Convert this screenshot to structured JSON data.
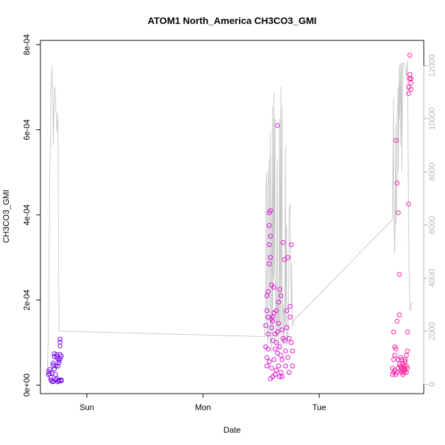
{
  "chart_data": {
    "type": "scatter",
    "title": "ATOM1 North_America CH3CO3_GMI",
    "xlabel": "Date",
    "ylabel": "CH3CO3_GMI",
    "x_ticks": [
      "Sun",
      "Mon",
      "Tue"
    ],
    "x_tick_values_days": [
      0,
      1,
      2
    ],
    "xlim_days": [
      -0.4,
      2.9
    ],
    "y_ticks": [
      "0e+00",
      "2e-04",
      "4e-04",
      "6e-04",
      "8e-04"
    ],
    "y_tick_values": [
      0,
      0.0002,
      0.0004,
      0.0006,
      0.0008
    ],
    "ylim": [
      -2e-05,
      0.00081
    ],
    "y2_ticks": [
      "0",
      "2000",
      "4000",
      "6000",
      "8000",
      "10000",
      "12000"
    ],
    "y2_tick_values": [
      0,
      2000,
      4000,
      6000,
      8000,
      10000,
      12000
    ],
    "y2lim": [
      -350,
      12950
    ],
    "point_color_start": "#6a00ee",
    "point_color_mid": "#d100e6",
    "point_color_end": "#ff1493",
    "altitude_line_color": "#c8c8c8",
    "right_axis_color": "#b8b8b8",
    "series": [
      {
        "style": "points",
        "x": [
          -0.33,
          -0.33,
          -0.32,
          -0.32,
          -0.31,
          -0.31,
          -0.3,
          -0.3,
          -0.29,
          -0.29,
          -0.29,
          -0.28,
          -0.28,
          -0.28,
          -0.27,
          -0.27,
          -0.27,
          -0.26,
          -0.26,
          -0.26,
          -0.25,
          -0.25,
          -0.25,
          -0.24,
          -0.24,
          -0.24,
          -0.24,
          -0.23,
          -0.23,
          -0.23,
          -0.23,
          -0.23,
          -0.22,
          -0.22,
          -0.22,
          -0.22
        ],
        "y": [
          2.5e-05,
          3.2e-05,
          3.7e-05,
          2.7e-05,
          1.8e-05,
          1.2e-05,
          9e-06,
          2.8e-05,
          4.7e-05,
          5.2e-05,
          8e-06,
          6.7e-05,
          7.4e-05,
          3.8e-05,
          4.5e-05,
          1.2e-05,
          2.5e-05,
          7.2e-05,
          6.7e-05,
          1.5e-05,
          8e-06,
          4.5e-05,
          6.2e-05,
          5.2e-05,
          1e-05,
          1.2e-05,
          5.8e-05,
          6.2e-05,
          7.2e-05,
          9.2e-05,
          0.000101,
          0.000108,
          6.8e-05,
          1.2e-05,
          1e-05,
          1.2e-05
        ]
      },
      {
        "style": "points",
        "x": [
          1.54,
          1.54,
          1.55,
          1.55,
          1.55,
          1.55,
          1.56,
          1.56,
          1.56,
          1.56,
          1.57,
          1.57,
          1.57,
          1.57,
          1.57,
          1.58,
          1.58,
          1.58,
          1.58,
          1.59,
          1.59,
          1.59,
          1.59,
          1.6,
          1.6,
          1.6,
          1.6,
          1.61,
          1.61,
          1.61,
          1.62,
          1.62,
          1.62,
          1.63,
          1.63,
          1.63,
          1.64,
          1.64,
          1.64,
          1.65,
          1.65,
          1.65,
          1.66,
          1.66,
          1.66,
          1.67,
          1.67,
          1.67,
          1.68,
          1.68,
          1.68,
          1.69,
          1.69,
          1.7,
          1.7,
          1.71,
          1.71,
          1.72,
          1.72,
          1.73,
          1.73,
          1.74,
          1.74,
          1.75,
          1.75,
          1.76,
          1.76,
          1.77,
          1.77
        ],
        "y": [
          9e-05,
          0.00014,
          0.00021,
          6.5e-05,
          0.000175,
          4.5e-05,
          0.00022,
          8.5e-05,
          0.00016,
          0.00012,
          0.000285,
          0.000375,
          0.000405,
          0.00033,
          5.5e-05,
          0.00041,
          0.00035,
          0.0003,
          1.5e-05,
          0.000235,
          0.000155,
          0.000135,
          4e-05,
          0.00016,
          0.000105,
          0.00015,
          2e-05,
          0.00023,
          0.00017,
          6e-05,
          0.00012,
          8.5e-05,
          2.5e-05,
          0.0001,
          3.5e-05,
          0.000175,
          0.00061,
          0.000125,
          7.5e-05,
          0.000145,
          4.5e-05,
          0.000195,
          0.000225,
          2e-05,
          9e-05,
          0.00021,
          7e-05,
          3e-05,
          0.00013,
          6e-05,
          2e-05,
          0.00011,
          0.000335,
          0.000295,
          0.000105,
          8e-05,
          4.5e-05,
          0.000175,
          0.000135,
          0.0003,
          6.5e-05,
          0.00011,
          3e-05,
          0.000185,
          0.00016,
          0.0001,
          0.00033,
          4.5e-05,
          8e-05
        ]
      },
      {
        "style": "points",
        "x": [
          2.63,
          2.63,
          2.64,
          2.64,
          2.64,
          2.65,
          2.65,
          2.65,
          2.66,
          2.66,
          2.66,
          2.67,
          2.67,
          2.67,
          2.68,
          2.68,
          2.68,
          2.69,
          2.69,
          2.69,
          2.7,
          2.7,
          2.7,
          2.71,
          2.71,
          2.71,
          2.72,
          2.72,
          2.72,
          2.73,
          2.73,
          2.73,
          2.74,
          2.74,
          2.74,
          2.75,
          2.75,
          2.75,
          2.76,
          2.76,
          2.76,
          2.77,
          2.77,
          2.77,
          2.78,
          2.78,
          2.78,
          2.79,
          2.79,
          2.79
        ],
        "y": [
          2.5e-05,
          4e-05,
          6e-05,
          0.000125,
          3e-05,
          9e-05,
          3.5e-05,
          7e-05,
          0.000575,
          8.5e-05,
          2.5e-05,
          0.000475,
          0.00015,
          3e-05,
          0.000405,
          6e-05,
          4e-05,
          0.000165,
          0.00026,
          5e-05,
          6.5e-05,
          3.5e-05,
          4.5e-05,
          4e-05,
          6e-05,
          3e-05,
          3.5e-05,
          5e-05,
          2.5e-05,
          4.5e-05,
          3e-05,
          4e-05,
          5.5e-05,
          3.5e-05,
          6e-05,
          3e-05,
          7e-05,
          4.5e-05,
          8e-05,
          0.000125,
          4e-05,
          0.000425,
          0.0007,
          0.000685,
          0.000775,
          0.00072,
          0.00073,
          0.00071,
          0.00072,
          0.000695
        ]
      },
      {
        "style": "line",
        "axis": "right",
        "x": [
          -0.34,
          -0.33,
          -0.32,
          -0.31,
          -0.31,
          -0.3,
          -0.3,
          -0.29,
          -0.29,
          -0.28,
          -0.28,
          -0.27,
          -0.27,
          -0.26,
          -0.26,
          -0.25,
          -0.25,
          -0.24,
          -0.24,
          -0.23,
          -0.23,
          -0.23,
          -0.22,
          -0.22,
          1.53,
          1.54,
          1.54,
          1.55,
          1.55,
          1.56,
          1.56,
          1.57,
          1.57,
          1.58,
          1.58,
          1.59,
          1.59,
          1.6,
          1.6,
          1.61,
          1.61,
          1.62,
          1.62,
          1.63,
          1.63,
          1.64,
          1.64,
          1.65,
          1.65,
          1.66,
          1.66,
          1.67,
          1.67,
          1.68,
          1.68,
          1.69,
          1.69,
          1.7,
          1.7,
          1.71,
          1.71,
          1.72,
          1.72,
          1.73,
          1.73,
          1.74,
          1.74,
          1.75,
          1.75,
          1.76,
          1.76,
          1.77,
          1.78,
          2.63,
          2.64,
          2.64,
          2.65,
          2.65,
          2.66,
          2.66,
          2.67,
          2.67,
          2.68,
          2.68,
          2.69,
          2.69,
          2.7,
          2.7,
          2.71,
          2.71,
          2.72,
          2.73,
          2.74,
          2.75,
          2.76,
          2.77,
          2.78,
          2.79,
          2.79,
          2.8
        ],
        "y": [
          500,
          2000,
          8000,
          10000,
          11000,
          12000,
          11500,
          10000,
          9000,
          11000,
          11200,
          11000,
          10500,
          10000,
          9500,
          10000,
          10200,
          2000,
          2000,
          2000,
          2000,
          2000,
          2000,
          2000,
          1800,
          3000,
          7200,
          8000,
          2500,
          1500,
          7000,
          8500,
          4500,
          1500,
          9500,
          3500,
          1200,
          10500,
          1800,
          11000,
          4000,
          10000,
          4500,
          1500,
          2000,
          8500,
          1800,
          3500,
          1200,
          10000,
          2000,
          11200,
          1500,
          10500,
          3500,
          1500,
          3000,
          2500,
          1500,
          9000,
          2200,
          6000,
          1500,
          2000,
          1500,
          5000,
          6500,
          6800,
          6200,
          3000,
          4500,
          2200,
          2400,
          6200,
          10800,
          7000,
          5000,
          4900,
          9800,
          6000,
          7500,
          10000,
          11200,
          8000,
          12000,
          10000,
          12100,
          9000,
          12100,
          8000,
          12100,
          12100,
          12000,
          11500,
          12200,
          5500,
          2800,
          2800,
          3000,
          3100
        ]
      }
    ]
  }
}
